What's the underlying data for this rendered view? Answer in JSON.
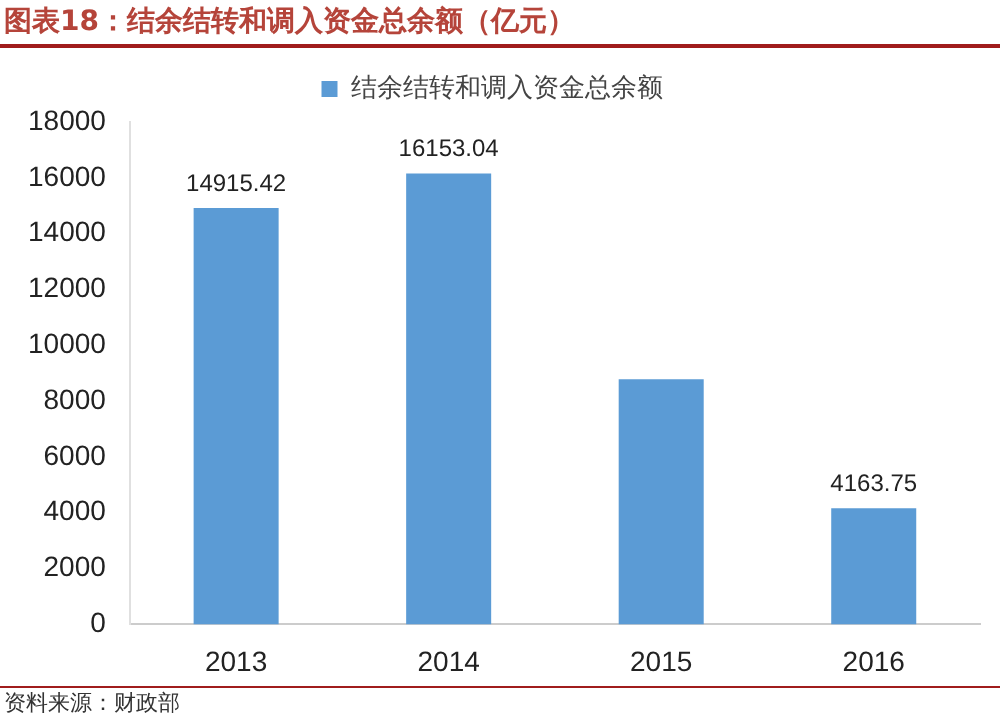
{
  "chart_data": {
    "type": "bar",
    "title": "图表18：结余结转和调入资金总余额（亿元）",
    "categories": [
      "2013",
      "2014",
      "2015",
      "2016"
    ],
    "series": [
      {
        "name": "结余结转和调入资金总余额",
        "color": "#5b9bd5",
        "values": [
          14915.42,
          16153.04,
          8780,
          4163.75
        ],
        "value_labels": [
          "14915.42",
          "16153.04",
          null,
          "4163.75"
        ]
      }
    ],
    "ylim": [
      0,
      18000
    ],
    "yticks": [
      0,
      2000,
      4000,
      6000,
      8000,
      10000,
      12000,
      14000,
      16000,
      18000
    ],
    "grid": false,
    "legend": "top",
    "annotations": [
      "资料来源：财政部"
    ]
  }
}
